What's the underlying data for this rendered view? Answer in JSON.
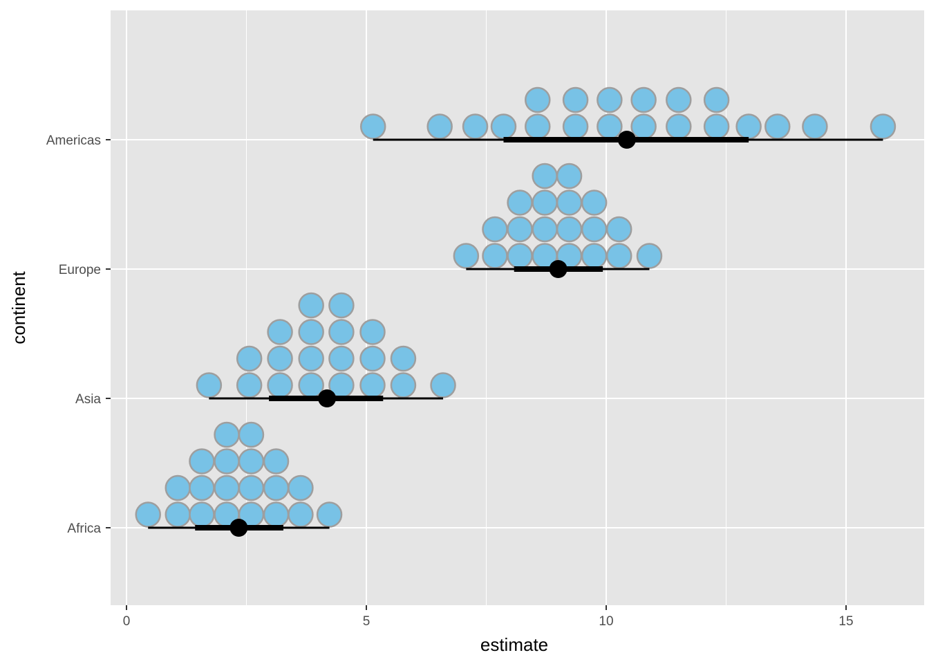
{
  "chart_data": {
    "type": "scatter",
    "subtype": "dotplot-with-interval",
    "xlabel": "estimate",
    "ylabel": "continent",
    "xlim": [
      -0.3,
      16.0
    ],
    "x_ticks": [
      0,
      5,
      10,
      15
    ],
    "x_tick_labels": [
      "0",
      "5",
      "10",
      "15"
    ],
    "categories": [
      "Africa",
      "Asia",
      "Europe",
      "Americas"
    ],
    "grid": true,
    "legend": "none",
    "colors": {
      "panel": "#e5e5e5",
      "grid": "#ffffff",
      "dot_fill": "#78c2e6",
      "dot_stroke": "#9e9e9e",
      "interval": "#000000"
    },
    "series": [
      {
        "category": "Africa",
        "dots": [
          {
            "x": 0.45,
            "stack": 1
          },
          {
            "x": 1.07,
            "stack": 2
          },
          {
            "x": 1.57,
            "stack": 3
          },
          {
            "x": 2.09,
            "stack": 4
          },
          {
            "x": 2.6,
            "stack": 4
          },
          {
            "x": 3.12,
            "stack": 3
          },
          {
            "x": 3.63,
            "stack": 2
          },
          {
            "x": 4.23,
            "stack": 1
          }
        ],
        "point": 2.34,
        "interval_66": [
          1.43,
          3.27
        ],
        "interval_95": [
          0.45,
          4.23
        ]
      },
      {
        "category": "Asia",
        "dots": [
          {
            "x": 1.72,
            "stack": 1
          },
          {
            "x": 2.56,
            "stack": 2
          },
          {
            "x": 3.2,
            "stack": 3
          },
          {
            "x": 3.85,
            "stack": 4
          },
          {
            "x": 4.48,
            "stack": 4
          },
          {
            "x": 5.13,
            "stack": 3
          },
          {
            "x": 5.77,
            "stack": 2
          },
          {
            "x": 6.6,
            "stack": 1
          }
        ],
        "point": 4.18,
        "interval_66": [
          2.97,
          5.35
        ],
        "interval_95": [
          1.72,
          6.6
        ]
      },
      {
        "category": "Europe",
        "dots": [
          {
            "x": 7.08,
            "stack": 1
          },
          {
            "x": 7.68,
            "stack": 2
          },
          {
            "x": 8.2,
            "stack": 3
          },
          {
            "x": 8.72,
            "stack": 4
          },
          {
            "x": 9.23,
            "stack": 4
          },
          {
            "x": 9.75,
            "stack": 3
          },
          {
            "x": 10.27,
            "stack": 2
          },
          {
            "x": 10.9,
            "stack": 1
          }
        ],
        "point": 9.0,
        "interval_66": [
          8.08,
          9.93
        ],
        "interval_95": [
          7.08,
          10.9
        ]
      },
      {
        "category": "Americas",
        "dots": [
          {
            "x": 5.14,
            "stack": 1
          },
          {
            "x": 6.53,
            "stack": 1
          },
          {
            "x": 7.27,
            "stack": 1
          },
          {
            "x": 7.86,
            "stack": 1
          },
          {
            "x": 8.57,
            "stack": 2
          },
          {
            "x": 9.36,
            "stack": 2
          },
          {
            "x": 10.07,
            "stack": 2
          },
          {
            "x": 10.78,
            "stack": 2
          },
          {
            "x": 11.51,
            "stack": 2
          },
          {
            "x": 12.3,
            "stack": 2
          },
          {
            "x": 12.97,
            "stack": 1
          },
          {
            "x": 13.57,
            "stack": 1
          },
          {
            "x": 14.35,
            "stack": 1
          },
          {
            "x": 15.77,
            "stack": 1
          }
        ],
        "point": 10.43,
        "interval_66": [
          7.86,
          12.97
        ],
        "interval_95": [
          5.14,
          15.77
        ]
      }
    ]
  }
}
